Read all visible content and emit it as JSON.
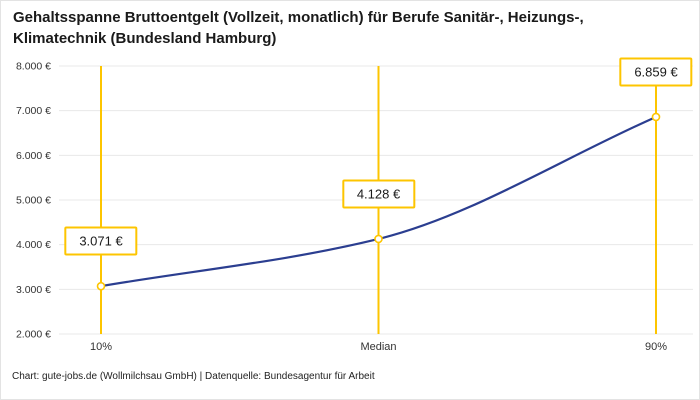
{
  "title": "Gehaltsspanne Bruttoentgelt (Vollzeit, monatlich) für Berufe Sanitär-, Heizungs-, Klimatechnik (Bundesland Hamburg)",
  "footer": "Chart: gute-jobs.de (Wollmilchsau GmbH) | Datenquelle: Bundesagentur für Arbeit",
  "colors": {
    "accent": "#fdc500",
    "line": "#2b3e90",
    "grid": "#e8e8e8",
    "axis_text": "#333333",
    "text": "#1a1a1a"
  },
  "chart_data": {
    "type": "line",
    "title": "Gehaltsspanne Bruttoentgelt (Vollzeit, monatlich) für Berufe Sanitär-, Heizungs-, Klimatechnik (Bundesland Hamburg)",
    "categories": [
      "10%",
      "Median",
      "90%"
    ],
    "values": [
      3071,
      4128,
      6859
    ],
    "value_labels": [
      "3.071 €",
      "4.128 €",
      "6.859 €"
    ],
    "ylim": [
      2000,
      8000
    ],
    "y_ticks": [
      2000,
      3000,
      4000,
      5000,
      6000,
      7000,
      8000
    ],
    "y_tick_labels": [
      "2.000 €",
      "3.000 €",
      "4.000 €",
      "5.000 €",
      "6.000 €",
      "7.000 €",
      "8.000 €"
    ],
    "grid": true,
    "legend": false,
    "source": "Chart: gute-jobs.de (Wollmilchsau GmbH) | Datenquelle: Bundesagentur für Arbeit"
  }
}
